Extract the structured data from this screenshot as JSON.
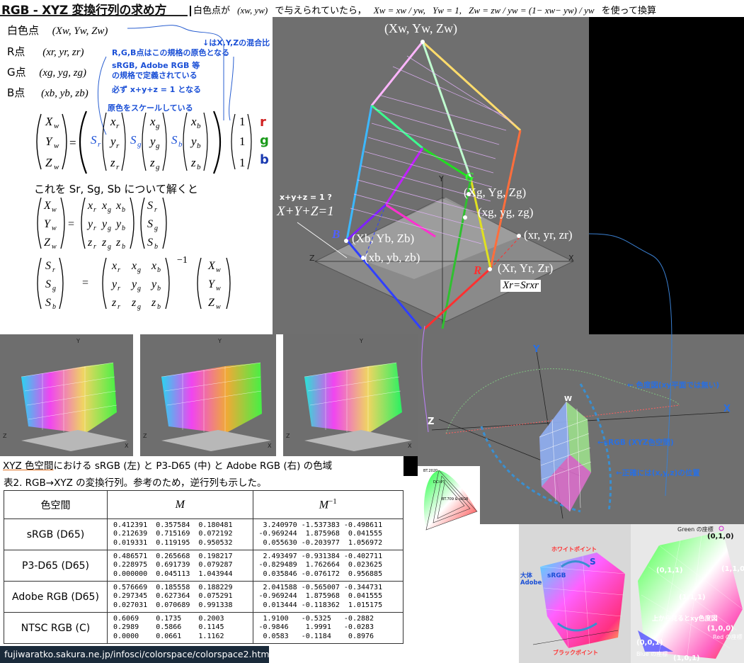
{
  "header": {
    "title": "RGB - XYZ 変換行列の求め方",
    "note_lead": "白色点が",
    "note_xy": "(xw, yw)",
    "note_mid": "で与えられていたら，",
    "note_eq1": "Xw = xw / yw,",
    "note_eq2": "Yw = 1,",
    "note_eq3": "Zw = zw / yw = (1− xw− yw) / yw",
    "note_tail": "を使って換算"
  },
  "left": {
    "white_label": "白色点",
    "white_val": "(Xw, Yw, Zw)",
    "r_label": "R点",
    "r_val": "(xr, yr, zr)",
    "g_label": "G点",
    "g_val": "(xg, yg, zg)",
    "b_label": "B点",
    "b_val": "(xb, yb, zb)",
    "note1": "↓はX,Y,Zの混合比",
    "note2": "R,G,B点はこの規格の原色となる",
    "note3": "sRGB, Adobe RGB 等",
    "note4": "の規格で定義されている",
    "note5": "必ず x+y+z = 1 となる",
    "note6": "原色をスケールしている",
    "solve_text": "これを Sr, Sg, Sb について解くと",
    "r": "r",
    "g": "g",
    "b": "b",
    "inv": "−1"
  },
  "diagram": {
    "white_pt": "(Xw, Yw, Zw)",
    "g_big": "(Xg, Yg, Zg)",
    "g_small": "(xg, yg, zg)",
    "b_big": "(Xb, Yb, Zb)",
    "b_small": "(xb, yb, zb)",
    "r_big": "(Xr, Yr, Zr)",
    "r_small": "(xr, yr, zr)",
    "plane_q": "x+y+z = 1 ?",
    "plane": "X+Y+Z=1",
    "g_letter": "G",
    "b_letter": "B",
    "r_letter": "R",
    "y_axis": "Y",
    "x_axis": "X",
    "z_axis": "Z",
    "xr_eq": "Xr=Srxr"
  },
  "caption": {
    "underlined": "XYZ 色空間",
    "rest": "における sRGB (左) と P3-D65 (中) と Adobe RGB (右) の色域",
    "table_title": "表2. RGB→XYZ の変換行列。参考のため，逆行列も示した。"
  },
  "table": {
    "h_space": "色空間",
    "h_m": "M",
    "h_minv": "M",
    "h_minv_sup": "−1",
    "rows": [
      {
        "name": "sRGB (D65)",
        "m": "0.412391  0.357584  0.180481\n0.212639  0.715169  0.072192\n0.019331  0.119195  0.950532",
        "minv": " 3.240970 -1.537383 -0.498611\n-0.969244  1.875968  0.041555\n 0.055630 -0.203977  1.056972"
      },
      {
        "name": "P3-D65 (D65)",
        "m": "0.486571  0.265668  0.198217\n0.228975  0.691739  0.079287\n0.000000  0.045113  1.043944",
        "minv": " 2.493497 -0.931384 -0.402711\n-0.829489  1.762664  0.023625\n 0.035846 -0.076172  0.956885"
      },
      {
        "name": "Adobe RGB (D65)",
        "m": "0.576669  0.185558  0.188229\n0.297345  0.627364  0.075291\n0.027031  0.070689  0.991338",
        "minv": " 2.041588 -0.565007 -0.344731\n-0.969244  1.875968  0.041555\n 0.013444 -0.118362  1.015175"
      },
      {
        "name": "NTSC RGB (C)",
        "m": "0.6069    0.1735    0.2003\n0.2989    0.5866    0.1145\n0.0000    0.0661    1.1162",
        "minv": " 1.9100   -0.5325   -0.2882\n-0.9846    1.9991   -0.0283\n 0.0583   -0.1184    0.8976"
      }
    ]
  },
  "right_panel": {
    "y": "Y",
    "x": "X",
    "z": "Z",
    "w": "W",
    "chroma_note": "← 色度図(xy平面では無い)",
    "srgb_note": "←sRGB (XYZ色空間)",
    "pos_note": "←正確には(x,y,z)の位置"
  },
  "bottom_right": {
    "white_pt": "ホワイトポイント",
    "black_pt": "ブラックポイント",
    "adobe": "大体\nAdobe",
    "srgb": "sRGB",
    "s": "S",
    "green": "Green の座標",
    "g010": "(0,1,0)",
    "g011": "(0,1,1)",
    "g110": "(1,1,0)",
    "g111": "(1,1,1)",
    "top_note": "上から見るとxy色度図",
    "g001": "(0,0,1)",
    "g100": "(1,0,0)",
    "red": "Red の座標",
    "blue": "Blue の座標",
    "g101": "(1,0,1)"
  },
  "mini_chart": {
    "l1": "BT.2020",
    "l2": "DCI-P3",
    "l3": "BT.709 & sRGB"
  },
  "footer": {
    "url": "fujiwaratko.sakura.ne.jp/infosci/colorspace/colorspace2.html"
  }
}
